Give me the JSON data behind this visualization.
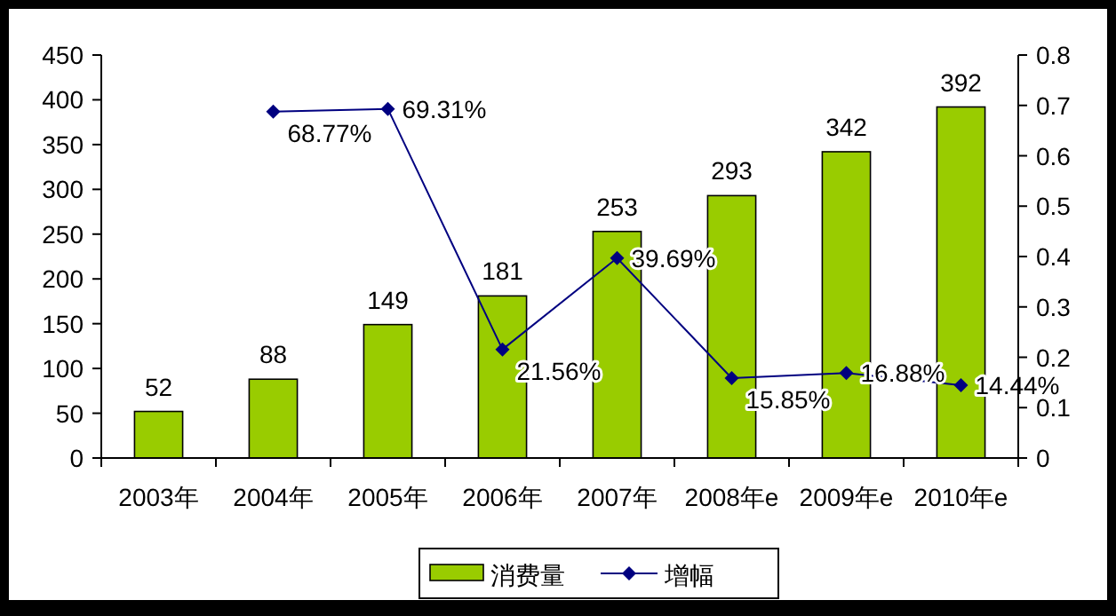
{
  "chart_data": {
    "type": "bar",
    "categories": [
      "2003年",
      "2004年",
      "2005年",
      "2006年",
      "2007年",
      "2008年e",
      "2009年e",
      "2010年e"
    ],
    "series": [
      {
        "name": "消费量",
        "color": "#99cc00",
        "values": [
          52,
          88,
          149,
          181,
          253,
          293,
          342,
          392
        ],
        "data_labels": true
      },
      {
        "name": "增幅",
        "type": "line",
        "axis": "y2",
        "color": "#000080",
        "marker": "diamond",
        "values": [
          null,
          0.6877,
          0.6931,
          0.2156,
          0.3969,
          0.1585,
          0.1688,
          0.1444
        ],
        "value_labels": [
          null,
          "68.77%",
          "69.31%",
          "21.56%",
          "39.69%",
          "15.85%",
          "16.88%",
          "14.44%"
        ]
      }
    ],
    "ylim": [
      0,
      450
    ],
    "yticks": [
      0,
      50,
      100,
      150,
      200,
      250,
      300,
      350,
      400,
      450
    ],
    "y2lim": [
      0,
      0.8
    ],
    "y2ticks": [
      0,
      0.1,
      0.2,
      0.3,
      0.4,
      0.5,
      0.6,
      0.7,
      0.8
    ],
    "grid": false,
    "legend": "bottom"
  }
}
